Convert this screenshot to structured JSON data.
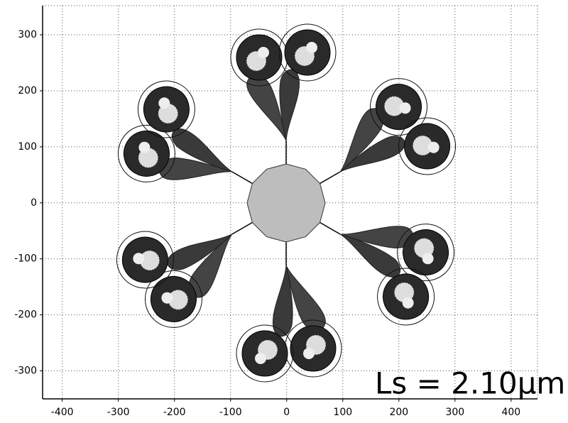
{
  "chart_data": {
    "type": "scatter",
    "xlim": [
      -435,
      447
    ],
    "ylim": [
      -350,
      352
    ],
    "xticks": [
      -400,
      -300,
      -200,
      -100,
      0,
      100,
      200,
      300,
      400
    ],
    "yticks": [
      -300,
      -200,
      -100,
      0,
      100,
      200,
      300
    ],
    "grid": true,
    "annotation": "Ls = 2.10μm"
  }
}
